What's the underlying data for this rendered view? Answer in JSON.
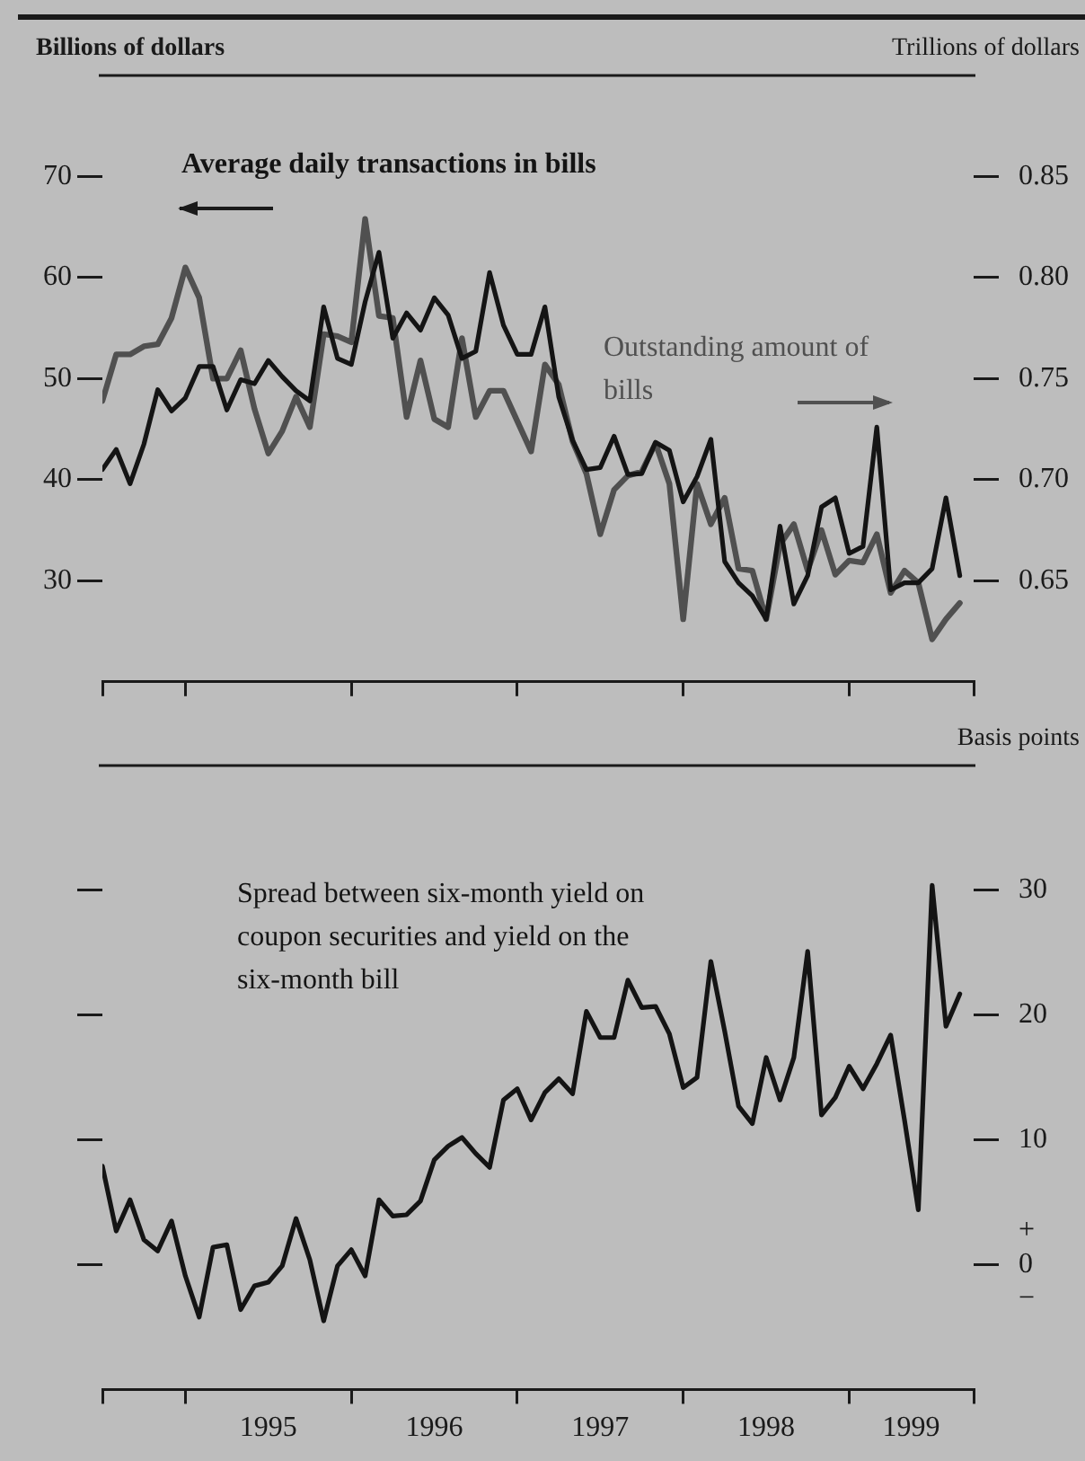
{
  "chart_data": [
    {
      "type": "line",
      "ylabel": "Billions of dollars",
      "y2label": "Trillions of dollars",
      "tick_labels": "y",
      "grid": false,
      "legend": false,
      "line_style": "solid",
      "x": [
        "1994-07",
        "1994-08",
        "1994-09",
        "1994-10",
        "1994-11",
        "1994-12",
        "1995-01",
        "1995-02",
        "1995-03",
        "1995-04",
        "1995-05",
        "1995-06",
        "1995-07",
        "1995-08",
        "1995-09",
        "1995-10",
        "1995-11",
        "1995-12",
        "1996-01",
        "1996-02",
        "1996-03",
        "1996-04",
        "1996-05",
        "1996-06",
        "1996-07",
        "1996-08",
        "1996-09",
        "1996-10",
        "1996-11",
        "1996-12",
        "1997-01",
        "1997-02",
        "1997-03",
        "1997-04",
        "1997-05",
        "1997-06",
        "1997-07",
        "1997-08",
        "1997-09",
        "1997-10",
        "1997-11",
        "1997-12",
        "1998-01",
        "1998-02",
        "1998-03",
        "1998-04",
        "1998-05",
        "1998-06",
        "1998-07",
        "1998-08",
        "1998-09",
        "1998-10",
        "1998-11",
        "1998-12",
        "1999-01",
        "1999-02",
        "1999-03",
        "1999-04",
        "1999-05",
        "1999-06",
        "1999-07",
        "1999-08",
        "1999-09"
      ],
      "series": [
        {
          "name": "Average daily transactions in bills",
          "color": "#141414",
          "values": [
            41.0,
            43.0,
            39.6,
            43.5,
            48.9,
            46.8,
            48.1,
            51.2,
            51.2,
            46.9,
            49.9,
            49.5,
            51.8,
            50.2,
            48.8,
            47.8,
            57.1,
            52.0,
            51.4,
            57.6,
            62.5,
            54.0,
            56.5,
            54.8,
            58.0,
            56.3,
            52.0,
            52.7,
            60.5,
            55.3,
            52.4,
            52.4,
            57.1,
            48.2,
            43.9,
            41.0,
            41.2,
            44.3,
            40.5,
            40.6,
            43.7,
            42.9,
            37.8,
            40.3,
            44.0,
            31.9,
            29.8,
            28.5,
            26.2,
            35.4,
            27.7,
            30.5,
            37.3,
            38.2,
            32.7,
            33.4,
            45.2,
            29.1,
            29.8,
            29.8,
            31.2,
            38.2,
            30.5
          ]
        },
        {
          "name": "Outstanding amount of bills",
          "color": "#505050",
          "axis": "y2",
          "values": [
            0.739,
            0.762,
            0.762,
            0.766,
            0.767,
            0.78,
            0.805,
            0.79,
            0.75,
            0.75,
            0.764,
            0.735,
            0.713,
            0.724,
            0.741,
            0.726,
            0.772,
            0.771,
            0.768,
            0.829,
            0.781,
            0.78,
            0.731,
            0.759,
            0.73,
            0.726,
            0.77,
            0.731,
            0.744,
            0.744,
            0.729,
            0.714,
            0.757,
            0.747,
            0.719,
            0.703,
            0.673,
            0.695,
            0.702,
            0.704,
            0.718,
            0.698,
            0.631,
            0.698,
            0.678,
            0.691,
            0.656,
            0.655,
            0.631,
            0.668,
            0.678,
            0.655,
            0.675,
            0.653,
            0.66,
            0.659,
            0.673,
            0.644,
            0.655,
            0.649,
            0.621,
            0.631,
            0.639
          ]
        }
      ],
      "xlim": [
        "1994-07",
        "1999-10"
      ],
      "xticks": [
        {
          "value": "1994-07",
          "label": null
        },
        {
          "value": "1995-01",
          "label": null
        },
        {
          "value": "1996-01",
          "label": null
        },
        {
          "value": "1997-01",
          "label": null
        },
        {
          "value": "1998-01",
          "label": null
        },
        {
          "value": "1999-01",
          "label": null
        },
        {
          "value": "1999-10",
          "label": null
        }
      ],
      "ylim": [
        20,
        80
      ],
      "yticks": [
        30,
        40,
        50,
        60,
        70
      ],
      "y2lim": [
        0.6,
        0.9
      ],
      "y2ticks": [
        0.65,
        {
          "value": 0.7,
          "label": "0.70"
        },
        0.75,
        {
          "value": 0.8,
          "label": "0.80"
        },
        0.85
      ]
    },
    {
      "type": "line",
      "y2label": "Basis points",
      "grid": false,
      "legend": false,
      "line_style": "solid",
      "x": [
        "1994-07",
        "1994-08",
        "1994-09",
        "1994-10",
        "1994-11",
        "1994-12",
        "1995-01",
        "1995-02",
        "1995-03",
        "1995-04",
        "1995-05",
        "1995-06",
        "1995-07",
        "1995-08",
        "1995-09",
        "1995-10",
        "1995-11",
        "1995-12",
        "1996-01",
        "1996-02",
        "1996-03",
        "1996-04",
        "1996-05",
        "1996-06",
        "1996-07",
        "1996-08",
        "1996-09",
        "1996-10",
        "1996-11",
        "1996-12",
        "1997-01",
        "1997-02",
        "1997-03",
        "1997-04",
        "1997-05",
        "1997-06",
        "1997-07",
        "1997-08",
        "1997-09",
        "1997-10",
        "1997-11",
        "1997-12",
        "1998-01",
        "1998-02",
        "1998-03",
        "1998-04",
        "1998-05",
        "1998-06",
        "1998-07",
        "1998-08",
        "1998-09",
        "1998-10",
        "1998-11",
        "1998-12",
        "1999-01",
        "1999-02",
        "1999-03",
        "1999-04",
        "1999-05",
        "1999-06",
        "1999-07",
        "1999-08",
        "1999-09"
      ],
      "series": [
        {
          "name": "Spread between six-month yield on coupon securities and yield on the six-month bill",
          "color": "#141414",
          "axis": "y2",
          "values": [
            7.9,
            2.7,
            5.2,
            2.0,
            1.1,
            3.5,
            -0.9,
            -4.2,
            1.4,
            1.6,
            -3.6,
            -1.7,
            -1.4,
            -0.1,
            3.7,
            0.4,
            -4.5,
            -0.1,
            1.2,
            -0.9,
            5.2,
            3.9,
            4.0,
            5.1,
            8.4,
            9.5,
            10.2,
            8.9,
            7.8,
            13.2,
            14.1,
            11.6,
            13.8,
            14.9,
            13.7,
            20.3,
            18.2,
            18.2,
            22.8,
            20.6,
            20.7,
            18.5,
            14.2,
            15.0,
            24.3,
            18.7,
            12.7,
            11.3,
            16.6,
            13.2,
            16.6,
            25.1,
            12.0,
            13.4,
            15.9,
            14.1,
            16.1,
            18.4,
            11.6,
            4.4,
            30.4,
            19.1,
            21.7
          ]
        }
      ],
      "xlim": [
        "1994-07",
        "1999-10"
      ],
      "xticks": [
        {
          "value": "1994-07",
          "label": null
        },
        {
          "value": "1995-01",
          "label": null
        },
        {
          "value": "1995-07",
          "label": "1995"
        },
        {
          "value": "1996-01",
          "label": null
        },
        {
          "value": "1996-07",
          "label": "1996"
        },
        {
          "value": "1997-01",
          "label": null
        },
        {
          "value": "1997-07",
          "label": "1997"
        },
        {
          "value": "1998-01",
          "label": null
        },
        {
          "value": "1998-07",
          "label": "1998"
        },
        {
          "value": "1999-01",
          "label": null
        },
        {
          "value": "1999-05-16",
          "label": "1999"
        },
        {
          "value": "1999-10",
          "label": null
        }
      ],
      "y2lim": [
        -10,
        40
      ],
      "y2ticks": [
        {
          "value": 0,
          "label": "+\n0\n−"
        },
        10,
        20,
        30
      ]
    }
  ]
}
